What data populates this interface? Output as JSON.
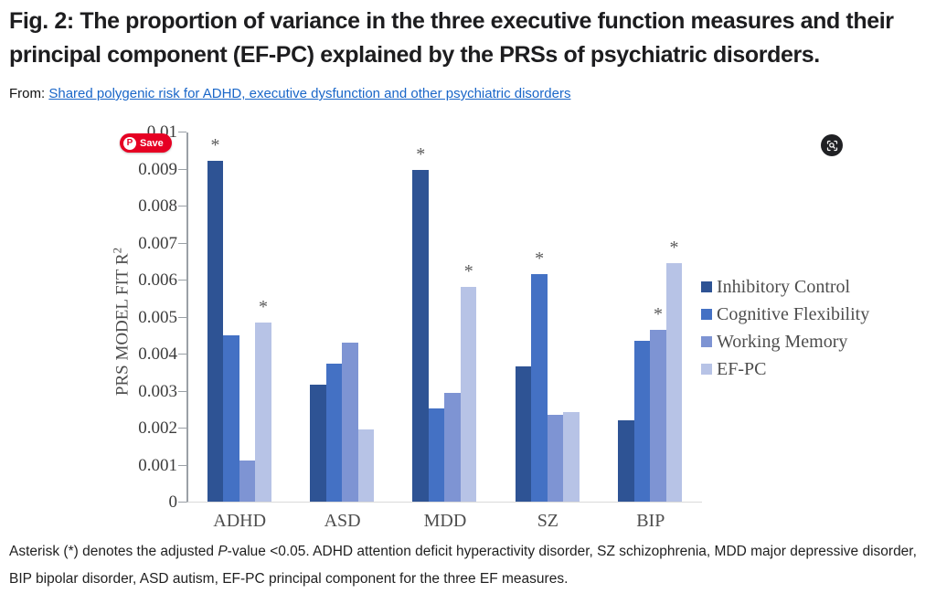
{
  "header": {
    "title": "Fig. 2: The proportion of variance in the three executive function measures and their principal component (EF-PC) explained by the PRSs of psychiatric disorders.",
    "from_label": "From:",
    "from_link": "Shared polygenic risk for ADHD, executive dysfunction and other psychiatric disorders"
  },
  "overlay": {
    "pinterest_logo_glyph": "P",
    "pinterest_save_label": "Save",
    "pinterest_red": "#e60023",
    "lens_icon_name": "image-search-lens"
  },
  "chart_data": {
    "type": "bar",
    "title": "",
    "xlabel": "",
    "ylabel_base": "PRS MODEL FIT R",
    "ylabel_sup": "2",
    "ylim": [
      0,
      0.01
    ],
    "yticks": [
      "0",
      "0.001",
      "0.002",
      "0.003",
      "0.004",
      "0.005",
      "0.006",
      "0.007",
      "0.008",
      "0.009",
      "0.01"
    ],
    "grid": false,
    "legend_position": "right",
    "significance_marker": "*",
    "categories": [
      "ADHD",
      "ASD",
      "MDD",
      "SZ",
      "BIP"
    ],
    "series": [
      {
        "name": "Inhibitory Control",
        "color": "#2e5394",
        "values": [
          0.0092,
          0.00315,
          0.00897,
          0.00365,
          0.0022
        ],
        "significant": [
          true,
          false,
          true,
          false,
          false
        ]
      },
      {
        "name": "Cognitive Flexibility",
        "color": "#4471c4",
        "values": [
          0.0045,
          0.00372,
          0.00252,
          0.00615,
          0.00435
        ],
        "significant": [
          false,
          false,
          false,
          true,
          false
        ]
      },
      {
        "name": "Working Memory",
        "color": "#7e94d3",
        "values": [
          0.0011,
          0.0043,
          0.00295,
          0.00235,
          0.00465
        ],
        "significant": [
          false,
          false,
          false,
          false,
          true
        ]
      },
      {
        "name": "EF-PC",
        "color": "#b7c3e6",
        "values": [
          0.00485,
          0.00195,
          0.0058,
          0.00242,
          0.00645
        ],
        "significant": [
          true,
          false,
          true,
          false,
          true
        ]
      }
    ]
  },
  "caption": {
    "part1": "Asterisk (*) denotes the adjusted ",
    "italic_p": "P",
    "part2": "-value <0.05. ADHD attention deficit hyperactivity disorder, SZ schizophrenia, MDD major depressive disorder, BIP bipolar disorder, ASD autism, EF-PC principal component for the three EF measures."
  }
}
